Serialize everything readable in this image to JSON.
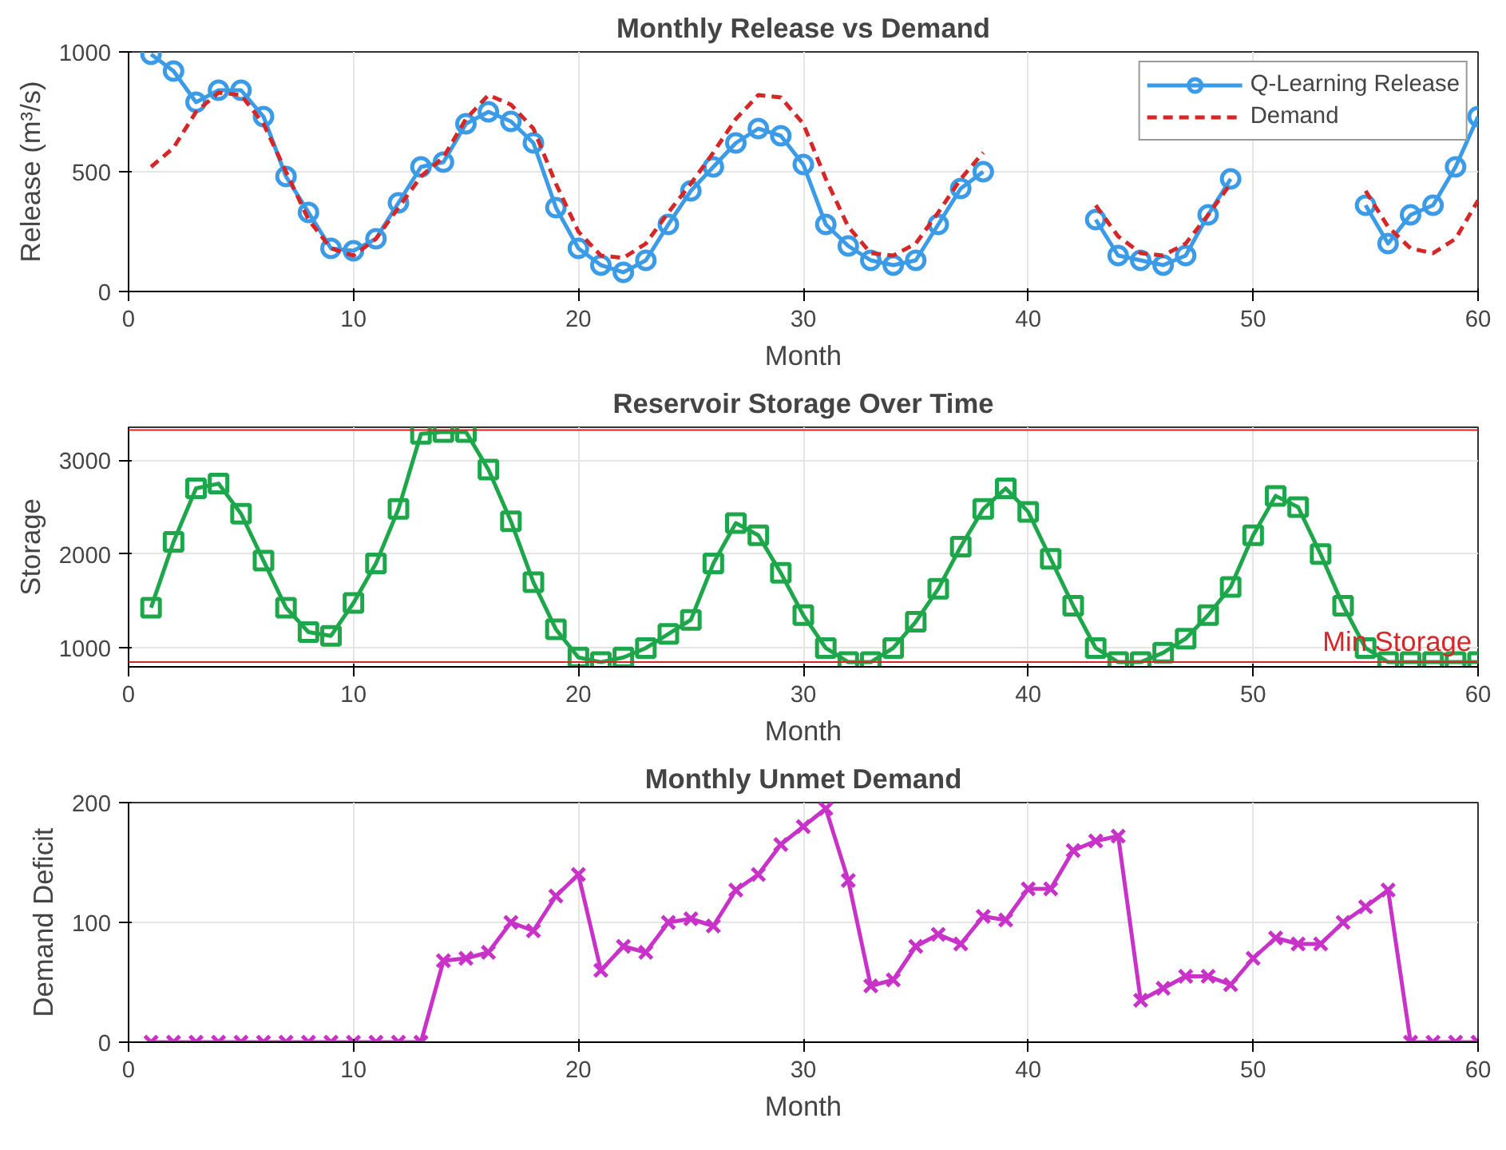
{
  "chart_data": [
    {
      "type": "line",
      "title": "Monthly Release vs Demand",
      "xlabel": "Month",
      "ylabel": "Release (m³/s)",
      "x": [
        1,
        2,
        3,
        4,
        5,
        6,
        7,
        8,
        9,
        10,
        11,
        12,
        13,
        14,
        15,
        16,
        17,
        18,
        19,
        20,
        21,
        22,
        23,
        24,
        25,
        26,
        27,
        28,
        29,
        30,
        31,
        32,
        33,
        34,
        35,
        36,
        37,
        38,
        39,
        40,
        41,
        42,
        43,
        44,
        45,
        46,
        47,
        48,
        49,
        50,
        51,
        52,
        53,
        54,
        55,
        56,
        57,
        58,
        59,
        60
      ],
      "xlim": [
        0,
        60
      ],
      "xticks": [
        0,
        10,
        20,
        30,
        40,
        50,
        60
      ],
      "ylim": [
        0,
        1000
      ],
      "yticks": [
        0,
        500,
        1000
      ],
      "grid": true,
      "legend": "top right",
      "series": [
        {
          "name": "Q-Learning Release",
          "color": "#3b9be6",
          "marker": "circle",
          "line_style": "solid",
          "values": [
            990,
            920,
            790,
            840,
            840,
            730,
            480,
            330,
            180,
            170,
            220,
            370,
            520,
            540,
            700,
            750,
            710,
            620,
            350,
            180,
            110,
            80,
            130,
            280,
            420,
            520,
            620,
            680,
            650,
            530,
            280,
            190,
            130,
            110,
            130,
            280,
            430,
            500,
            null,
            null,
            null,
            null,
            300,
            150,
            130,
            110,
            150,
            320,
            470,
            null,
            null,
            null,
            null,
            null,
            360,
            200,
            320,
            360,
            520,
            730
          ]
        },
        {
          "name": "Demand",
          "color": "#d62728",
          "marker": "none",
          "line_style": "dashed",
          "values": [
            520,
            600,
            750,
            830,
            820,
            700,
            500,
            300,
            180,
            150,
            220,
            350,
            480,
            560,
            720,
            820,
            780,
            680,
            450,
            250,
            150,
            140,
            200,
            330,
            450,
            580,
            720,
            820,
            810,
            700,
            470,
            270,
            160,
            150,
            200,
            330,
            470,
            580,
            null,
            null,
            null,
            null,
            360,
            230,
            160,
            150,
            200,
            320,
            450,
            null,
            null,
            null,
            null,
            null,
            420,
            270,
            180,
            160,
            220,
            380
          ]
        }
      ]
    },
    {
      "type": "line",
      "title": "Reservoir Storage Over Time",
      "xlabel": "Month",
      "ylabel": "Storage",
      "x": [
        1,
        2,
        3,
        4,
        5,
        6,
        7,
        8,
        9,
        10,
        11,
        12,
        13,
        14,
        15,
        16,
        17,
        18,
        19,
        20,
        21,
        22,
        23,
        24,
        25,
        26,
        27,
        28,
        29,
        30,
        31,
        32,
        33,
        34,
        35,
        36,
        37,
        38,
        39,
        40,
        41,
        42,
        43,
        44,
        45,
        46,
        47,
        48,
        49,
        50,
        51,
        52,
        53,
        54,
        55,
        56,
        57,
        58,
        59,
        60
      ],
      "xlim": [
        0,
        60
      ],
      "xticks": [
        0,
        10,
        20,
        30,
        40,
        50,
        60
      ],
      "ylim": [
        800,
        3350
      ],
      "yticks": [
        1000,
        2000,
        3000
      ],
      "grid": true,
      "series": [
        {
          "color": "#1ea64b",
          "marker": "square",
          "line_style": "solid",
          "values": [
            1430,
            2130,
            2700,
            2750,
            2430,
            1930,
            1430,
            1170,
            1130,
            1480,
            1900,
            2480,
            3280,
            3300,
            3300,
            2900,
            2350,
            1700,
            1200,
            900,
            850,
            900,
            1000,
            1150,
            1300,
            1900,
            2330,
            2200,
            1800,
            1350,
            1000,
            850,
            850,
            1000,
            1280,
            1630,
            2080,
            2480,
            2700,
            2450,
            1950,
            1450,
            1000,
            850,
            850,
            950,
            1100,
            1350,
            1650,
            2200,
            2620,
            2500,
            2000,
            1450,
            1000,
            850,
            850,
            850,
            850,
            850
          ]
        }
      ],
      "ref_lines": [
        {
          "axis": "y",
          "value": 850,
          "label": "Min Storage",
          "color": "#d62728",
          "line_style": "solid"
        },
        {
          "axis": "y",
          "value": 3320,
          "color": "#d62728",
          "line_style": "solid"
        }
      ]
    },
    {
      "type": "line",
      "title": "Monthly Unmet Demand",
      "xlabel": "Month",
      "ylabel": "Demand Deficit",
      "x": [
        1,
        2,
        3,
        4,
        5,
        6,
        7,
        8,
        9,
        10,
        11,
        12,
        13,
        14,
        15,
        16,
        17,
        18,
        19,
        20,
        21,
        22,
        23,
        24,
        25,
        26,
        27,
        28,
        29,
        30,
        31,
        32,
        33,
        34,
        35,
        36,
        37,
        38,
        39,
        40,
        41,
        42,
        43,
        44,
        45,
        46,
        47,
        48,
        49,
        50,
        51,
        52,
        53,
        54,
        55,
        56,
        57,
        58,
        59,
        60
      ],
      "xlim": [
        0,
        60
      ],
      "xticks": [
        0,
        10,
        20,
        30,
        40,
        50,
        60
      ],
      "ylim": [
        0,
        200
      ],
      "yticks": [
        0,
        100,
        200
      ],
      "grid": true,
      "series": [
        {
          "color": "#c832c8",
          "marker": "cross",
          "line_style": "solid",
          "values": [
            0,
            0,
            0,
            0,
            0,
            0,
            0,
            0,
            0,
            0,
            0,
            0,
            0,
            68,
            70,
            75,
            100,
            93,
            122,
            140,
            60,
            80,
            75,
            100,
            103,
            97,
            127,
            140,
            165,
            180,
            195,
            135,
            47,
            52,
            80,
            90,
            82,
            105,
            102,
            128,
            128,
            160,
            168,
            172,
            35,
            45,
            55,
            55,
            48,
            70,
            87,
            82,
            82,
            100,
            113,
            127,
            0,
            0,
            0,
            0
          ]
        }
      ]
    }
  ]
}
